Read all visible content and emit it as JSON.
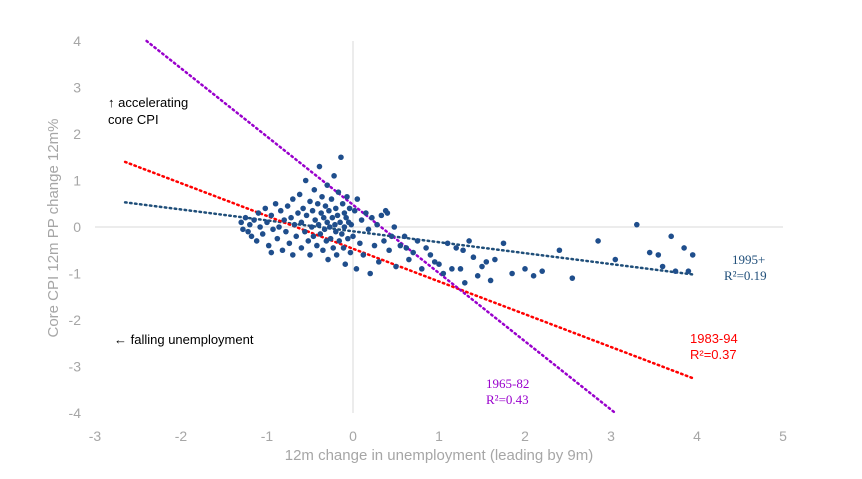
{
  "chart_data": {
    "type": "scatter",
    "title": "",
    "xlabel": "12m change in unemployment (leading by 9m)",
    "ylabel": "Core CPI 12m PP change 12m%",
    "xlim": [
      -3,
      5
    ],
    "ylim": [
      -4,
      4
    ],
    "x_ticks": [
      "-3",
      "-2",
      "-1",
      "0",
      "1",
      "2",
      "3",
      "4",
      "5"
    ],
    "y_ticks": [
      "4",
      "3",
      "2",
      "1",
      "0",
      "-1",
      "-2",
      "-3",
      "-4"
    ],
    "grid": false,
    "zero_axes": true,
    "point_color": "#1f4e8c",
    "annotations": {
      "top_left_line1": "↑ accelerating",
      "top_left_line2": "core CPI",
      "bottom_left": "← falling unemployment"
    },
    "trendlines": [
      {
        "period": "1995+",
        "r2": "R²=0.19",
        "color": "#1f4e79",
        "x": [
          -2.65,
          3.95
        ],
        "y": [
          0.53,
          -1.02
        ]
      },
      {
        "period": "1983-94",
        "r2": "R²=0.37",
        "color": "#ff0000",
        "x": [
          -2.65,
          3.95
        ],
        "y": [
          1.4,
          -3.25
        ]
      },
      {
        "period": "1965-82",
        "r2": "R²=0.43",
        "color": "#9900cc",
        "x": [
          -2.4,
          3.05
        ],
        "y": [
          4.0,
          -4.0
        ]
      }
    ],
    "points": [
      [
        -1.3,
        0.1
      ],
      [
        -1.28,
        -0.05
      ],
      [
        -1.25,
        0.2
      ],
      [
        -1.22,
        -0.1
      ],
      [
        -1.2,
        0.05
      ],
      [
        -1.18,
        -0.2
      ],
      [
        -1.15,
        0.15
      ],
      [
        -1.12,
        -0.3
      ],
      [
        -1.1,
        0.3
      ],
      [
        -1.08,
        0.0
      ],
      [
        -1.05,
        -0.15
      ],
      [
        -1.02,
        0.4
      ],
      [
        -1.0,
        0.1
      ],
      [
        -0.98,
        -0.4
      ],
      [
        -0.95,
        0.25
      ],
      [
        -0.93,
        -0.05
      ],
      [
        -0.9,
        0.5
      ],
      [
        -0.88,
        -0.25
      ],
      [
        -0.86,
        0.0
      ],
      [
        -0.84,
        0.35
      ],
      [
        -0.82,
        -0.5
      ],
      [
        -0.8,
        0.15
      ],
      [
        -0.78,
        -0.1
      ],
      [
        -0.76,
        0.45
      ],
      [
        -0.74,
        -0.35
      ],
      [
        -0.72,
        0.2
      ],
      [
        -0.7,
        0.6
      ],
      [
        -0.7,
        -0.6
      ],
      [
        -0.68,
        0.05
      ],
      [
        -0.66,
        -0.2
      ],
      [
        -0.64,
        0.3
      ],
      [
        -0.62,
        0.7
      ],
      [
        -0.6,
        -0.45
      ],
      [
        -0.6,
        0.1
      ],
      [
        -0.58,
        0.4
      ],
      [
        -0.56,
        -0.1
      ],
      [
        -0.55,
        1.0
      ],
      [
        -0.54,
        0.25
      ],
      [
        -0.52,
        -0.3
      ],
      [
        -0.5,
        0.55
      ],
      [
        -0.5,
        -0.6
      ],
      [
        -0.48,
        0.0
      ],
      [
        -0.47,
        0.35
      ],
      [
        -0.46,
        -0.2
      ],
      [
        -0.45,
        0.8
      ],
      [
        -0.44,
        0.15
      ],
      [
        -0.42,
        -0.4
      ],
      [
        -0.41,
        0.5
      ],
      [
        -0.4,
        0.05
      ],
      [
        -0.39,
        1.3
      ],
      [
        -0.38,
        -0.15
      ],
      [
        -0.37,
        0.3
      ],
      [
        -0.36,
        0.65
      ],
      [
        -0.35,
        -0.5
      ],
      [
        -0.34,
        0.2
      ],
      [
        -0.33,
        -0.05
      ],
      [
        -0.32,
        0.45
      ],
      [
        -0.31,
        -0.3
      ],
      [
        -0.3,
        0.9
      ],
      [
        -0.3,
        0.1
      ],
      [
        -0.29,
        -0.7
      ],
      [
        -0.28,
        0.35
      ],
      [
        -0.27,
        0.0
      ],
      [
        -0.26,
        -0.25
      ],
      [
        -0.25,
        0.6
      ],
      [
        -0.24,
        0.2
      ],
      [
        -0.23,
        -0.45
      ],
      [
        -0.22,
        1.1
      ],
      [
        -0.21,
        0.05
      ],
      [
        -0.2,
        -0.1
      ],
      [
        -0.2,
        0.4
      ],
      [
        -0.19,
        -0.6
      ],
      [
        -0.18,
        0.25
      ],
      [
        -0.17,
        0.75
      ],
      [
        -0.16,
        -0.3
      ],
      [
        -0.15,
        0.1
      ],
      [
        -0.14,
        1.5
      ],
      [
        -0.13,
        -0.15
      ],
      [
        -0.12,
        0.5
      ],
      [
        -0.11,
        -0.45
      ],
      [
        -0.1,
        0.3
      ],
      [
        -0.1,
        0.0
      ],
      [
        -0.09,
        -0.8
      ],
      [
        -0.08,
        0.2
      ],
      [
        -0.07,
        0.65
      ],
      [
        -0.06,
        -0.25
      ],
      [
        -0.05,
        0.1
      ],
      [
        -0.04,
        0.4
      ],
      [
        -0.03,
        -0.55
      ],
      [
        -0.02,
        0.05
      ],
      [
        0.0,
        -0.2
      ],
      [
        0.02,
        0.35
      ],
      [
        0.04,
        -0.9
      ],
      [
        0.05,
        0.6
      ],
      [
        0.08,
        -0.35
      ],
      [
        0.1,
        0.15
      ],
      [
        0.12,
        -0.6
      ],
      [
        0.15,
        0.3
      ],
      [
        0.18,
        -0.05
      ],
      [
        0.2,
        -1.0
      ],
      [
        0.22,
        0.2
      ],
      [
        0.25,
        -0.4
      ],
      [
        0.28,
        0.05
      ],
      [
        0.3,
        -0.75
      ],
      [
        0.33,
        0.25
      ],
      [
        0.36,
        -0.3
      ],
      [
        0.4,
        0.3
      ],
      [
        0.42,
        -0.5
      ],
      [
        0.45,
        -0.2
      ],
      [
        0.48,
        0.0
      ],
      [
        0.5,
        -0.85
      ],
      [
        0.55,
        -0.4
      ],
      [
        0.6,
        -0.2
      ],
      [
        0.65,
        -0.7
      ],
      [
        0.7,
        -0.55
      ],
      [
        0.75,
        -0.3
      ],
      [
        0.8,
        -0.9
      ],
      [
        0.85,
        -0.45
      ],
      [
        0.9,
        -0.6
      ],
      [
        0.95,
        -0.75
      ],
      [
        1.0,
        -0.8
      ],
      [
        1.05,
        -1.0
      ],
      [
        1.1,
        -0.35
      ],
      [
        1.15,
        -0.9
      ],
      [
        1.2,
        -0.45
      ],
      [
        1.25,
        -0.9
      ],
      [
        1.3,
        -1.2
      ],
      [
        1.35,
        -0.3
      ],
      [
        1.4,
        -0.65
      ],
      [
        1.45,
        -1.05
      ],
      [
        1.5,
        -0.85
      ],
      [
        1.55,
        -0.75
      ],
      [
        1.6,
        -1.15
      ],
      [
        1.65,
        -0.7
      ],
      [
        1.75,
        -0.35
      ],
      [
        1.85,
        -1.0
      ],
      [
        2.0,
        -0.9
      ],
      [
        2.1,
        -1.05
      ],
      [
        2.2,
        -0.95
      ],
      [
        2.4,
        -0.5
      ],
      [
        2.55,
        -1.1
      ],
      [
        2.85,
        -0.3
      ],
      [
        3.05,
        -0.7
      ],
      [
        3.3,
        0.05
      ],
      [
        3.45,
        -0.55
      ],
      [
        3.55,
        -0.6
      ],
      [
        3.6,
        -0.85
      ],
      [
        3.7,
        -0.2
      ],
      [
        3.75,
        -0.95
      ],
      [
        3.85,
        -0.45
      ],
      [
        3.9,
        -0.95
      ],
      [
        3.95,
        -0.6
      ],
      [
        0.38,
        0.35
      ],
      [
        -0.95,
        -0.55
      ],
      [
        0.62,
        -0.45
      ],
      [
        1.28,
        -0.5
      ]
    ]
  }
}
